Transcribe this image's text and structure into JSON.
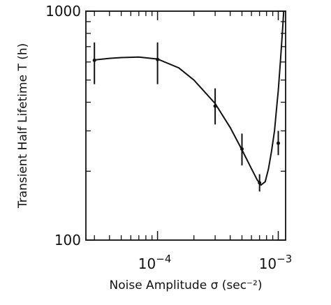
{
  "chart_data": {
    "type": "line",
    "xlabel": "Noise Amplitude σ (sec⁻²)",
    "ylabel": "Transient Half Lifetime T (h)",
    "xscale": "log",
    "yscale": "log",
    "xlim": [
      2.55e-05,
      0.00115
    ],
    "ylim": [
      100,
      1000
    ],
    "grid": false,
    "x_ticks": [
      {
        "value": 0.0001,
        "base": "10",
        "exp": "−4"
      },
      {
        "value": 0.001,
        "base": "10",
        "exp": "−3"
      }
    ],
    "y_ticks": [
      {
        "value": 100,
        "label": "100"
      },
      {
        "value": 1000,
        "label": "1000"
      }
    ],
    "points": [
      {
        "x": 3e-05,
        "y": 610,
        "err_low": 480,
        "err_high": 730
      },
      {
        "x": 0.0001,
        "y": 615,
        "err_low": 480,
        "err_high": 730
      },
      {
        "x": 0.0003,
        "y": 385,
        "err_low": 320,
        "err_high": 460
      },
      {
        "x": 0.0005,
        "y": 250,
        "err_low": 212,
        "err_high": 292
      },
      {
        "x": 0.0007,
        "y": 178,
        "err_low": 163,
        "err_high": 194
      },
      {
        "x": 0.001,
        "y": 265,
        "err_low": 235,
        "err_high": 300
      }
    ],
    "curve": [
      {
        "x": 3e-05,
        "y": 612
      },
      {
        "x": 4e-05,
        "y": 622
      },
      {
        "x": 5e-05,
        "y": 627
      },
      {
        "x": 7e-05,
        "y": 630
      },
      {
        "x": 0.0001,
        "y": 618
      },
      {
        "x": 0.00015,
        "y": 565
      },
      {
        "x": 0.0002,
        "y": 500
      },
      {
        "x": 0.0003,
        "y": 395
      },
      {
        "x": 0.0004,
        "y": 310
      },
      {
        "x": 0.0005,
        "y": 248
      },
      {
        "x": 0.0006,
        "y": 205
      },
      {
        "x": 0.00067,
        "y": 183
      },
      {
        "x": 0.00072,
        "y": 174
      },
      {
        "x": 0.00078,
        "y": 180
      },
      {
        "x": 0.00083,
        "y": 205
      },
      {
        "x": 0.00088,
        "y": 245
      },
      {
        "x": 0.00093,
        "y": 300
      },
      {
        "x": 0.00097,
        "y": 380
      },
      {
        "x": 0.001,
        "y": 450
      },
      {
        "x": 0.00104,
        "y": 600
      },
      {
        "x": 0.00108,
        "y": 800
      },
      {
        "x": 0.00111,
        "y": 1000
      }
    ]
  }
}
